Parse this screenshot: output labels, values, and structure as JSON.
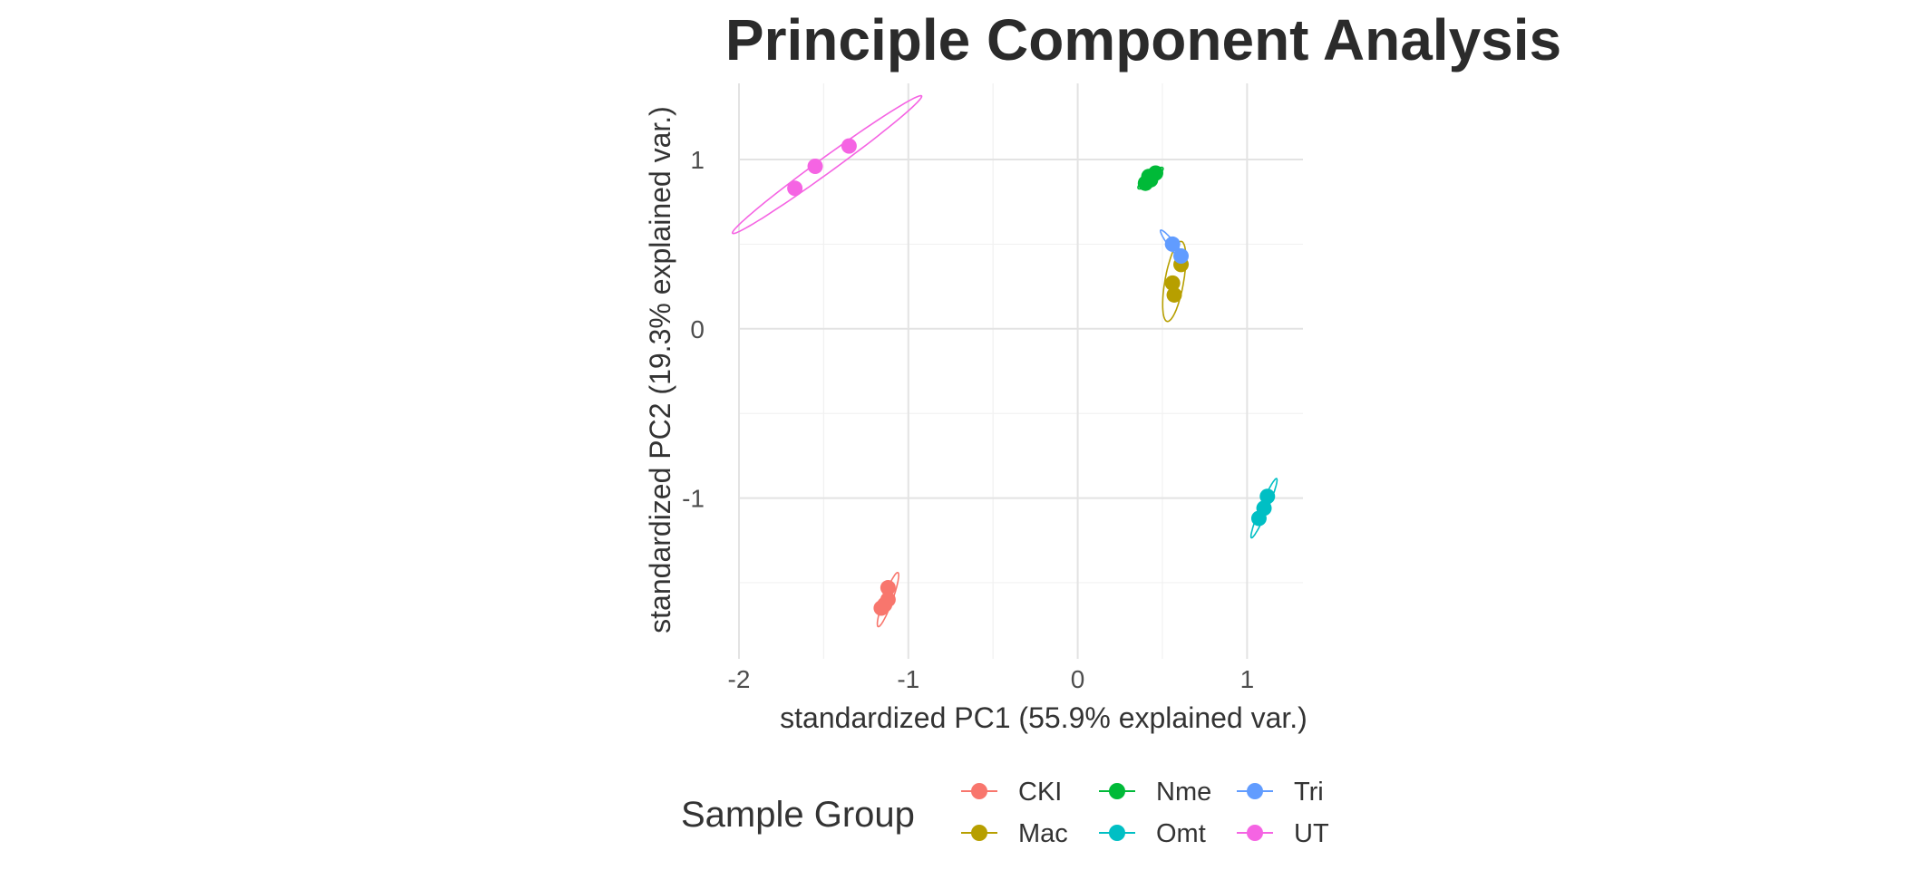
{
  "chart_data": {
    "type": "scatter",
    "title": "Principle Component Analysis",
    "xlabel": "standardized PC1 (55.9% explained var.)",
    "ylabel": "standardized PC2 (19.3% explained var.)",
    "xlim": [
      -2.0,
      1.33
    ],
    "ylim": [
      -1.95,
      1.45
    ],
    "x_ticks": [
      {
        "value": -2,
        "label": "-2"
      },
      {
        "value": -1,
        "label": "-1"
      },
      {
        "value": 0,
        "label": "0"
      },
      {
        "value": 1,
        "label": "1"
      }
    ],
    "y_ticks": [
      {
        "value": 1,
        "label": "1"
      },
      {
        "value": 0,
        "label": "0"
      },
      {
        "value": -1,
        "label": "-1"
      }
    ],
    "x_minor": [
      -1.5,
      -0.5,
      0.5
    ],
    "y_minor": [
      0.5,
      -0.5,
      -1.5
    ],
    "grid": true,
    "legend": {
      "title": "Sample Group",
      "position": "bottom",
      "entries": [
        "CKI",
        "Mac",
        "Nme",
        "Omt",
        "Tri",
        "UT"
      ]
    },
    "series": [
      {
        "name": "CKI",
        "color": "#F8766D",
        "points": [
          [
            -1.12,
            -1.53
          ],
          [
            -1.12,
            -1.6
          ],
          [
            -1.14,
            -1.63
          ],
          [
            -1.16,
            -1.65
          ]
        ],
        "ellipse": {
          "cx": -1.12,
          "cy": -1.6,
          "a": 0.17,
          "b": 0.026,
          "angle_deg": 70
        }
      },
      {
        "name": "Mac",
        "color": "#B79F00",
        "points": [
          [
            0.61,
            0.38
          ],
          [
            0.56,
            0.27
          ],
          [
            0.57,
            0.2
          ]
        ],
        "ellipse": {
          "cx": 0.57,
          "cy": 0.28,
          "a": 0.24,
          "b": 0.055,
          "angle_deg": 80
        }
      },
      {
        "name": "Nme",
        "color": "#00BA38",
        "points": [
          [
            0.4,
            0.86
          ],
          [
            0.43,
            0.88
          ],
          [
            0.46,
            0.92
          ],
          [
            0.42,
            0.9
          ]
        ],
        "ellipse": {
          "cx": 0.43,
          "cy": 0.89,
          "a": 0.095,
          "b": 0.024,
          "angle_deg": 40
        }
      },
      {
        "name": "Omt",
        "color": "#00BFC4",
        "points": [
          [
            1.12,
            -0.99
          ],
          [
            1.1,
            -1.06
          ],
          [
            1.07,
            -1.12
          ]
        ],
        "ellipse": {
          "cx": 1.1,
          "cy": -1.06,
          "a": 0.19,
          "b": 0.022,
          "angle_deg": 67
        }
      },
      {
        "name": "Tri",
        "color": "#619CFF",
        "points": [
          [
            0.56,
            0.5
          ],
          [
            0.61,
            0.43
          ]
        ],
        "ellipse": {
          "cx": 0.57,
          "cy": 0.48,
          "a": 0.13,
          "b": 0.02,
          "angle_deg": -52
        }
      },
      {
        "name": "UT",
        "color": "#F564E3",
        "points": [
          [
            -1.67,
            0.83
          ],
          [
            -1.55,
            0.96
          ],
          [
            -1.35,
            1.08
          ]
        ],
        "ellipse": {
          "cx": -1.48,
          "cy": 0.97,
          "a": 0.69,
          "b": 0.045,
          "angle_deg": 36
        }
      }
    ]
  }
}
